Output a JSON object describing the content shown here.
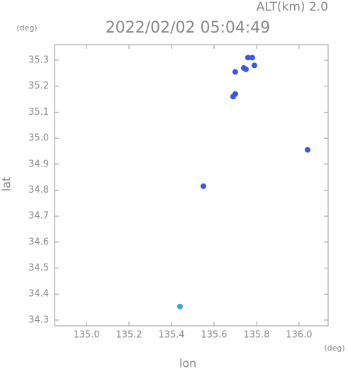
{
  "chart_data": {
    "type": "scatter",
    "title": "2022/02/02 05:04:49",
    "subtitle": "ALT(km) 2.0",
    "x_label": "lon",
    "y_label": "lat",
    "x_unit": "(deg)",
    "y_unit": "(deg)",
    "xlim": [
      134.85,
      136.137
    ],
    "ylim": [
      34.278,
      35.36
    ],
    "xticks": [
      {
        "value": 135.0,
        "label": "135.0"
      },
      135.2,
      135.4,
      135.6,
      135.8,
      {
        "value": 136.0,
        "label": "136.0"
      }
    ],
    "yticks": [
      35.3,
      35.2,
      35.1,
      {
        "value": 35.0,
        "label": "35.0"
      },
      34.9,
      34.8,
      34.7,
      34.6,
      34.5,
      34.4,
      34.3
    ],
    "series": [
      {
        "color": "#3a55ee",
        "x": [
          135.76,
          135.78,
          135.79,
          135.75,
          135.7,
          135.74,
          135.69,
          135.7,
          136.04,
          135.55
        ],
        "y": [
          35.31,
          35.31,
          35.28,
          35.265,
          35.255,
          35.27,
          35.16,
          35.17,
          34.955,
          34.815
        ]
      },
      {
        "color": "#33aacc",
        "x": [
          135.44
        ],
        "y": [
          34.352
        ]
      }
    ]
  }
}
